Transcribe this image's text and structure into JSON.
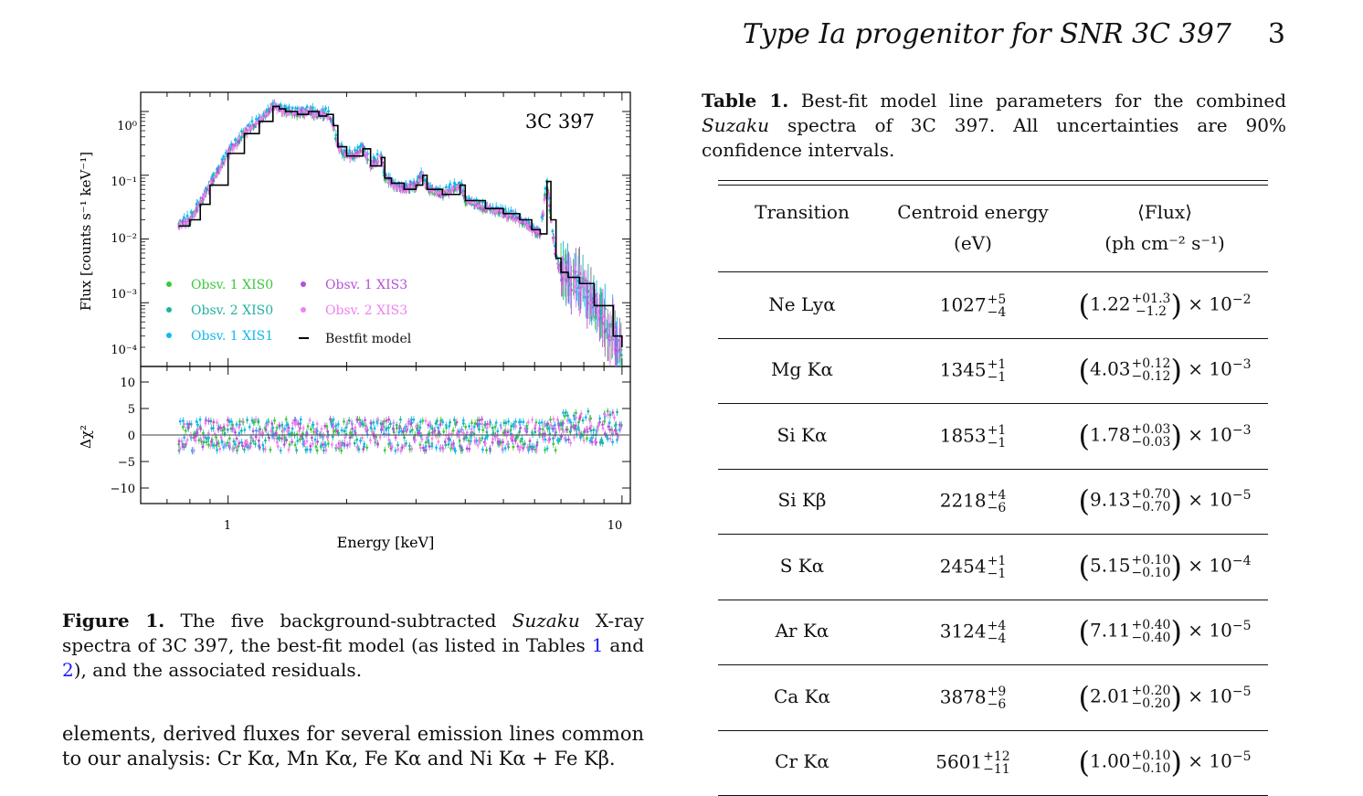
{
  "header": {
    "title": "Type Ia progenitor for SNR 3C 397",
    "page": "3"
  },
  "figure": {
    "top_panel": {
      "annotation": "3C 397",
      "ylabel": "Flux [counts s⁻¹ keV⁻¹]",
      "yticks": [
        "10⁰",
        "10⁻¹",
        "10⁻²",
        "10⁻³",
        "10⁻⁴"
      ],
      "legend": [
        {
          "label": "Obsv. 1 XIS0",
          "color": "#3cc83c"
        },
        {
          "label": "Obsv. 2 XIS0",
          "color": "#20b2a0"
        },
        {
          "label": "Obsv. 1 XIS1",
          "color": "#12b8ee"
        },
        {
          "label": "Obsv. 1 XIS3",
          "color": "#b550d8"
        },
        {
          "label": "Obsv. 2 XIS3",
          "color": "#ee82ee"
        },
        {
          "label": "Bestfit model",
          "color": "#000000"
        }
      ]
    },
    "bottom_panel": {
      "ylabel": "Δχ²",
      "yticks": [
        "10",
        "5",
        "0",
        "−5",
        "−10"
      ]
    },
    "xlabel": "Energy [keV]",
    "xticks": [
      "1",
      "10"
    ]
  },
  "chart_data": {
    "type": "scatter",
    "xlabel": "Energy [keV]",
    "ylabel": "Flux [counts s⁻¹ keV⁻¹]",
    "xscale": "log",
    "yscale": "log",
    "xlim": [
      0.6,
      10.5
    ],
    "ylim": [
      0.0001,
      2
    ],
    "residual_ylim": [
      -12,
      12
    ],
    "model": {
      "name": "Bestfit model",
      "x": [
        0.75,
        0.8,
        0.85,
        0.9,
        1.0,
        1.1,
        1.2,
        1.3,
        1.35,
        1.4,
        1.5,
        1.6,
        1.7,
        1.78,
        1.85,
        1.9,
        2.0,
        2.1,
        2.2,
        2.3,
        2.45,
        2.5,
        2.6,
        2.8,
        3.0,
        3.12,
        3.2,
        3.5,
        3.88,
        4.0,
        4.5,
        5.0,
        5.5,
        5.9,
        6.2,
        6.45,
        6.6,
        6.8,
        7.0,
        7.3,
        7.8,
        8.5,
        9.5,
        10.0
      ],
      "y": [
        0.016,
        0.02,
        0.035,
        0.07,
        0.22,
        0.45,
        0.7,
        1.2,
        1.1,
        1.0,
        0.9,
        1.0,
        0.85,
        0.9,
        0.6,
        0.28,
        0.2,
        0.2,
        0.26,
        0.14,
        0.19,
        0.09,
        0.075,
        0.06,
        0.07,
        0.1,
        0.06,
        0.05,
        0.07,
        0.04,
        0.03,
        0.025,
        0.02,
        0.014,
        0.012,
        0.08,
        0.02,
        0.005,
        0.003,
        0.0025,
        0.002,
        0.0009,
        0.0003,
        0.0002
      ]
    },
    "series_note": "Five observation/detector spectra follow the model closely with scatter; residuals range roughly ±5."
  },
  "figure_caption": {
    "label": "Figure 1.",
    "text_a": " The five background-subtracted ",
    "italic": "Suzaku",
    "text_b": " X-ray spectra of 3C 397, the best-fit model (as listed in Tables ",
    "ref1": "1",
    "and": " and ",
    "ref2": "2",
    "text_c": "), and the associated residuals."
  },
  "body_text": "elements, derived fluxes for several emission lines common to our analysis: Cr Kα, Mn Kα, Fe Kα and Ni Kα + Fe Kβ.",
  "table": {
    "label": "Table 1.",
    "caption_a": " Best-fit model line parameters for the combined ",
    "caption_italic": "Suzaku",
    "caption_b": " spectra of 3C 397. All uncertainties are 90% confidence intervals.",
    "headers": {
      "c1": "Transition",
      "c2a": "Centroid energy",
      "c2b": "(eV)",
      "c3a": "⟨Flux⟩",
      "c3b": "(ph cm⁻² s⁻¹)"
    },
    "rows": [
      {
        "transition": "Ne Lyα",
        "energy": "1027",
        "e_up": "+5",
        "e_lo": "−4",
        "flux": "1.22",
        "f_up": "+01.3",
        "f_lo": "−1.2",
        "exp": "−2"
      },
      {
        "transition": "Mg Kα",
        "energy": "1345",
        "e_up": "+1",
        "e_lo": "−1",
        "flux": "4.03",
        "f_up": "+0.12",
        "f_lo": "−0.12",
        "exp": "−3"
      },
      {
        "transition": "Si Kα",
        "energy": "1853",
        "e_up": "+1",
        "e_lo": "−1",
        "flux": "1.78",
        "f_up": "+0.03",
        "f_lo": "−0.03",
        "exp": "−3"
      },
      {
        "transition": "Si Kβ",
        "energy": "2218",
        "e_up": "+4",
        "e_lo": "−6",
        "flux": "9.13",
        "f_up": "+0.70",
        "f_lo": "−0.70",
        "exp": "−5"
      },
      {
        "transition": "S Kα",
        "energy": "2454",
        "e_up": "+1",
        "e_lo": "−1",
        "flux": "5.15",
        "f_up": "+0.10",
        "f_lo": "−0.10",
        "exp": "−4"
      },
      {
        "transition": "Ar Kα",
        "energy": "3124",
        "e_up": "+4",
        "e_lo": "−4",
        "flux": "7.11",
        "f_up": "+0.40",
        "f_lo": "−0.40",
        "exp": "−5"
      },
      {
        "transition": "Ca Kα",
        "energy": "3878",
        "e_up": "+9",
        "e_lo": "−6",
        "flux": "2.01",
        "f_up": "+0.20",
        "f_lo": "−0.20",
        "exp": "−5"
      },
      {
        "transition": "Cr Kα",
        "energy": "5601",
        "e_up": "+12",
        "e_lo": "−11",
        "flux": "1.00",
        "f_up": "+0.10",
        "f_lo": "−0.10",
        "exp": "−5"
      }
    ]
  }
}
